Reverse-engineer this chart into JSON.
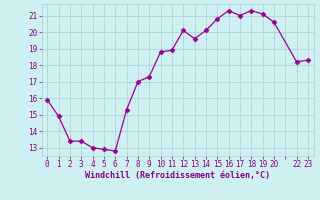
{
  "x": [
    0,
    1,
    2,
    3,
    4,
    5,
    6,
    7,
    8,
    9,
    10,
    11,
    12,
    13,
    14,
    15,
    16,
    17,
    18,
    19,
    20,
    22,
    23
  ],
  "y": [
    15.9,
    14.9,
    13.4,
    13.4,
    13.0,
    12.9,
    12.8,
    15.3,
    17.0,
    17.3,
    18.8,
    18.9,
    20.1,
    19.6,
    20.1,
    20.8,
    21.3,
    21.0,
    21.3,
    21.1,
    20.6,
    18.2,
    18.3
  ],
  "line_color": "#990099",
  "marker": "D",
  "marker_size": 2.5,
  "bg_color": "#cff0f0",
  "grid_color": "#aacece",
  "xlabel": "Windchill (Refroidissement éolien,°C)",
  "yticks": [
    13,
    14,
    15,
    16,
    17,
    18,
    19,
    20,
    21
  ],
  "ylim": [
    12.5,
    21.7
  ],
  "xlim": [
    -0.5,
    23.5
  ],
  "font_color": "#880088",
  "tick_fontsize": 5.5,
  "xlabel_fontsize": 6.0,
  "figsize": [
    3.2,
    2.0
  ],
  "dpi": 100
}
